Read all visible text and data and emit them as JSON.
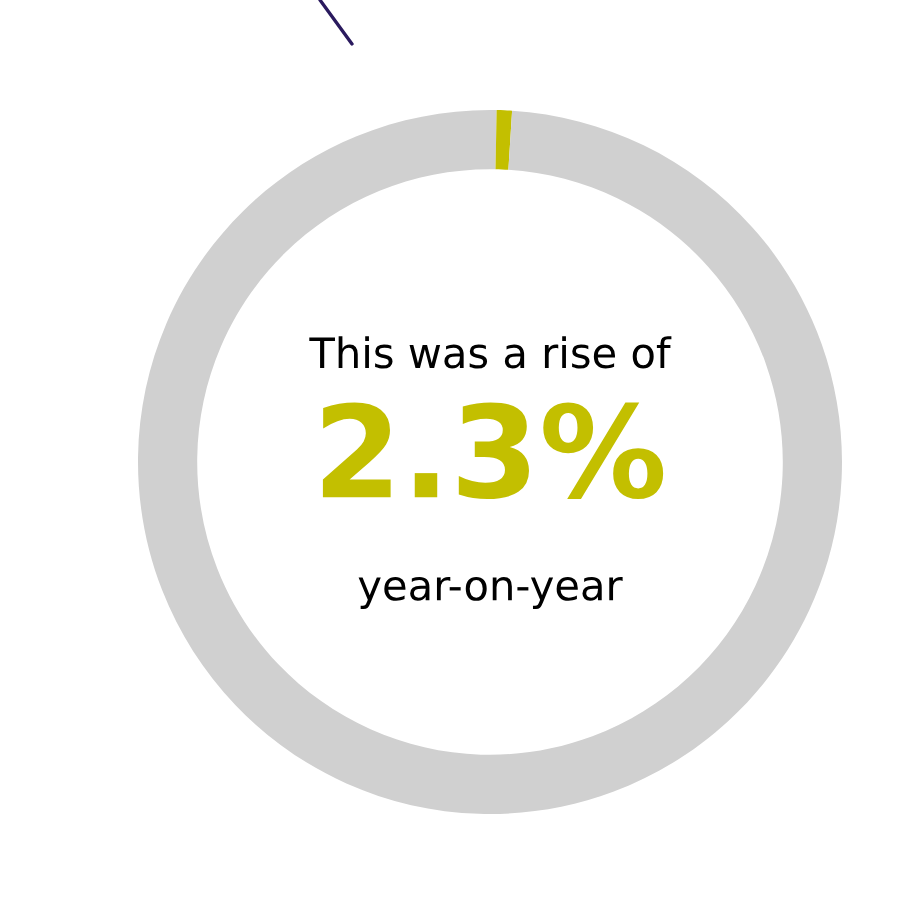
{
  "chart_data": {
    "type": "donut",
    "categories": [
      null,
      null,
      null
    ],
    "values": [
      0.3,
      0.7,
      99
    ],
    "colors": [
      "#d0d0d0",
      "#c3bf00",
      "#d0d0d0"
    ],
    "annotations": [
      "This was a rise of",
      "2.3%",
      "year-on-year"
    ]
  }
}
